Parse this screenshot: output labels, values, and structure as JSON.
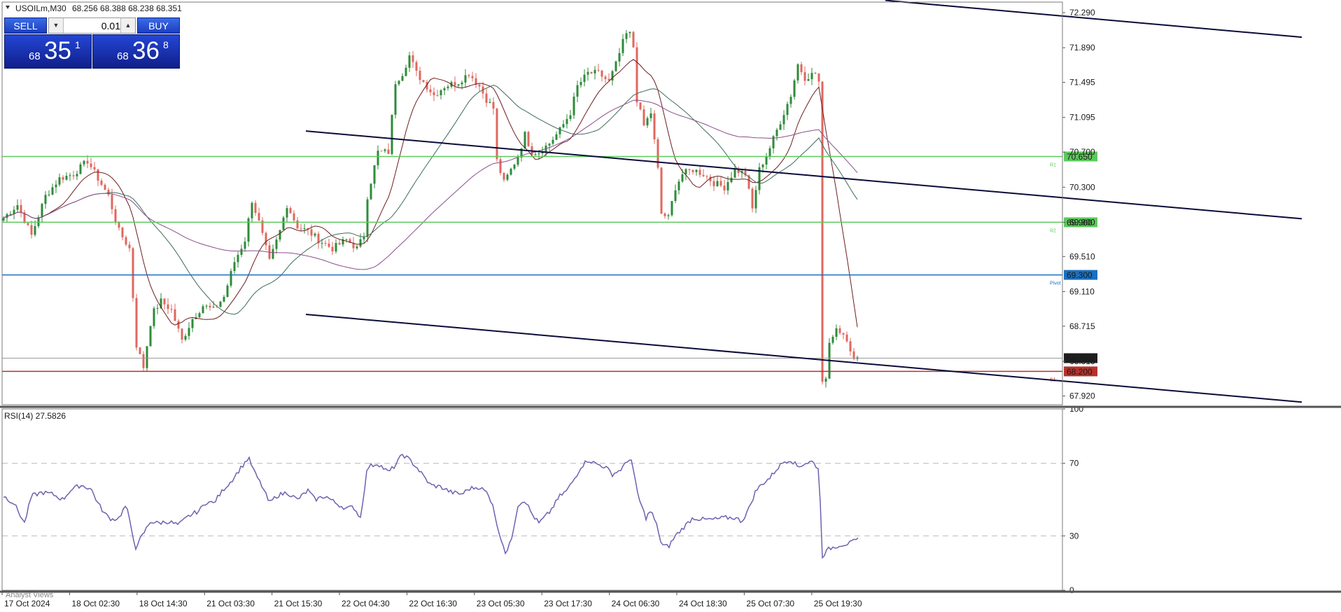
{
  "header": {
    "symbol_timeframe": "USOILm,M30",
    "ohlc": "68.256 68.388 68.238 68.351"
  },
  "trade_panel": {
    "sell_label": "SELL",
    "buy_label": "BUY",
    "lot_value": "0.01",
    "sell_price": {
      "prefix": "68",
      "main": "35",
      "sup": "1"
    },
    "buy_price": {
      "prefix": "68",
      "main": "36",
      "sup": "8"
    }
  },
  "colors": {
    "bull_candle": "#2e8b3a",
    "bear_candle": "#e0675e",
    "support_resistance_green": "#5cc95c",
    "pivot_blue": "#1a6fbf",
    "s1_red": "#b5322c",
    "channel_line": "#0b0b3a",
    "rsi_line": "#7060b0",
    "ma_fast": "#6b1d1d",
    "ma_mid": "#3f6b5a",
    "ma_slow": "#8a4f8a"
  },
  "chart_data": [
    {
      "type": "candlestick",
      "symbol": "USOILm",
      "timeframe": "M30",
      "price_ticks": [
        "72.290",
        "71.890",
        "71.495",
        "71.095",
        "70.700",
        "70.300",
        "69.900",
        "69.510",
        "69.110",
        "68.715",
        "68.315",
        "67.920"
      ],
      "ylim": [
        67.82,
        72.41
      ],
      "x_ticks": [
        "17 Oct 2024",
        "18 Oct 02:30",
        "18 Oct 14:30",
        "21 Oct 03:30",
        "21 Oct 15:30",
        "22 Oct 04:30",
        "22 Oct 16:30",
        "23 Oct 05:30",
        "23 Oct 17:30",
        "24 Oct 06:30",
        "24 Oct 18:30",
        "25 Oct 07:30",
        "25 Oct 19:30"
      ],
      "current_price": "68.351",
      "levels": [
        {
          "name": "R1",
          "value": 70.65,
          "label": "70.650",
          "tag": "R1"
        },
        {
          "name": "R2",
          "value": 69.9,
          "label": "69.900",
          "tag": "R2"
        },
        {
          "name": "Pivot",
          "value": 69.3,
          "label": "69.300",
          "tag": "Pivot"
        },
        {
          "name": "S1",
          "value": 68.2,
          "label": "68.200",
          "tag": "S1"
        }
      ],
      "channel_lines": [
        {
          "from": [
            437,
            70.94
          ],
          "to": [
            1860,
            69.94
          ]
        },
        {
          "from": [
            437,
            68.85
          ],
          "to": [
            1860,
            67.85
          ]
        },
        {
          "from": [
            1265,
            72.43
          ],
          "to": [
            1860,
            72.01
          ]
        }
      ],
      "anchors": [
        [
          0,
          69.95
        ],
        [
          20,
          70.1
        ],
        [
          40,
          69.75
        ],
        [
          60,
          70.2
        ],
        [
          80,
          70.4
        ],
        [
          100,
          70.45
        ],
        [
          120,
          70.6
        ],
        [
          135,
          70.4
        ],
        [
          150,
          70.2
        ],
        [
          165,
          69.8
        ],
        [
          180,
          69.6
        ],
        [
          190,
          68.5
        ],
        [
          200,
          68.25
        ],
        [
          212,
          68.85
        ],
        [
          225,
          69.0
        ],
        [
          240,
          68.9
        ],
        [
          255,
          68.55
        ],
        [
          270,
          68.8
        ],
        [
          285,
          68.95
        ],
        [
          300,
          68.9
        ],
        [
          315,
          69.05
        ],
        [
          330,
          69.45
        ],
        [
          345,
          69.7
        ],
        [
          355,
          70.15
        ],
        [
          365,
          69.9
        ],
        [
          380,
          69.45
        ],
        [
          395,
          69.8
        ],
        [
          405,
          70.1
        ],
        [
          420,
          69.85
        ],
        [
          435,
          69.8
        ],
        [
          450,
          69.7
        ],
        [
          470,
          69.6
        ],
        [
          490,
          69.7
        ],
        [
          505,
          69.6
        ],
        [
          515,
          69.75
        ],
        [
          520,
          70.2
        ],
        [
          535,
          70.7
        ],
        [
          550,
          70.7
        ],
        [
          560,
          71.5
        ],
        [
          570,
          71.6
        ],
        [
          580,
          71.8
        ],
        [
          590,
          71.6
        ],
        [
          600,
          71.5
        ],
        [
          615,
          71.35
        ],
        [
          630,
          71.45
        ],
        [
          650,
          71.5
        ],
        [
          665,
          71.6
        ],
        [
          680,
          71.45
        ],
        [
          690,
          71.3
        ],
        [
          700,
          71.2
        ],
        [
          705,
          70.6
        ],
        [
          715,
          70.35
        ],
        [
          725,
          70.5
        ],
        [
          735,
          70.65
        ],
        [
          745,
          70.9
        ],
        [
          755,
          70.7
        ],
        [
          765,
          70.7
        ],
        [
          780,
          70.8
        ],
        [
          795,
          70.95
        ],
        [
          810,
          71.15
        ],
        [
          820,
          71.45
        ],
        [
          835,
          71.6
        ],
        [
          850,
          71.6
        ],
        [
          865,
          71.5
        ],
        [
          875,
          71.7
        ],
        [
          885,
          71.95
        ],
        [
          893,
          72.1
        ],
        [
          900,
          71.9
        ],
        [
          905,
          71.3
        ],
        [
          915,
          71.0
        ],
        [
          925,
          71.15
        ],
        [
          935,
          70.5
        ],
        [
          940,
          70.0
        ],
        [
          950,
          69.95
        ],
        [
          960,
          70.3
        ],
        [
          970,
          70.45
        ],
        [
          985,
          70.5
        ],
        [
          1000,
          70.45
        ],
        [
          1015,
          70.35
        ],
        [
          1030,
          70.3
        ],
        [
          1045,
          70.5
        ],
        [
          1060,
          70.45
        ],
        [
          1070,
          70.05
        ],
        [
          1080,
          70.5
        ],
        [
          1095,
          70.75
        ],
        [
          1105,
          70.95
        ],
        [
          1115,
          71.15
        ],
        [
          1125,
          71.35
        ],
        [
          1135,
          71.7
        ],
        [
          1145,
          71.55
        ],
        [
          1160,
          71.6
        ],
        [
          1165,
          71.5
        ],
        [
          1168,
          68.3
        ],
        [
          1172,
          67.8
        ],
        [
          1178,
          68.5
        ],
        [
          1190,
          68.7
        ],
        [
          1200,
          68.65
        ],
        [
          1210,
          68.4
        ],
        [
          1222,
          68.35
        ]
      ]
    },
    {
      "type": "line",
      "indicator_label": "RSI(14) 27.5826",
      "ylim": [
        0,
        100
      ],
      "y_ticks": [
        "100",
        "70",
        "30",
        "0"
      ],
      "levels": [
        70,
        30
      ],
      "anchors": [
        [
          0,
          52
        ],
        [
          15,
          48
        ],
        [
          30,
          37
        ],
        [
          40,
          52
        ],
        [
          55,
          54
        ],
        [
          70,
          53
        ],
        [
          85,
          50
        ],
        [
          95,
          55
        ],
        [
          110,
          58
        ],
        [
          125,
          56
        ],
        [
          135,
          48
        ],
        [
          145,
          42
        ],
        [
          155,
          39
        ],
        [
          165,
          40
        ],
        [
          175,
          47
        ],
        [
          185,
          30
        ],
        [
          190,
          22
        ],
        [
          195,
          28
        ],
        [
          210,
          38
        ],
        [
          220,
          37
        ],
        [
          235,
          38
        ],
        [
          250,
          36
        ],
        [
          265,
          41
        ],
        [
          280,
          44
        ],
        [
          290,
          49
        ],
        [
          300,
          48
        ],
        [
          315,
          56
        ],
        [
          325,
          60
        ],
        [
          340,
          68
        ],
        [
          350,
          73
        ],
        [
          360,
          64
        ],
        [
          370,
          57
        ],
        [
          380,
          48
        ],
        [
          390,
          52
        ],
        [
          405,
          54
        ],
        [
          420,
          50
        ],
        [
          435,
          55
        ],
        [
          445,
          50
        ],
        [
          460,
          52
        ],
        [
          475,
          48
        ],
        [
          490,
          45
        ],
        [
          500,
          46
        ],
        [
          510,
          40
        ],
        [
          520,
          68
        ],
        [
          535,
          70
        ],
        [
          550,
          65
        ],
        [
          560,
          69
        ],
        [
          570,
          75
        ],
        [
          580,
          72
        ],
        [
          590,
          68
        ],
        [
          600,
          63
        ],
        [
          610,
          58
        ],
        [
          625,
          57
        ],
        [
          640,
          54
        ],
        [
          655,
          53
        ],
        [
          665,
          56
        ],
        [
          680,
          57
        ],
        [
          690,
          54
        ],
        [
          700,
          47
        ],
        [
          705,
          35
        ],
        [
          710,
          30
        ],
        [
          718,
          20
        ],
        [
          725,
          27
        ],
        [
          735,
          47
        ],
        [
          745,
          50
        ],
        [
          755,
          42
        ],
        [
          765,
          37
        ],
        [
          780,
          43
        ],
        [
          795,
          52
        ],
        [
          805,
          55
        ],
        [
          815,
          61
        ],
        [
          825,
          68
        ],
        [
          835,
          72
        ],
        [
          845,
          70
        ],
        [
          860,
          68
        ],
        [
          870,
          64
        ],
        [
          880,
          66
        ],
        [
          890,
          70
        ],
        [
          896,
          74
        ],
        [
          905,
          55
        ],
        [
          910,
          48
        ],
        [
          918,
          40
        ],
        [
          925,
          44
        ],
        [
          935,
          34
        ],
        [
          940,
          25
        ],
        [
          950,
          24
        ],
        [
          960,
          30
        ],
        [
          970,
          34
        ],
        [
          985,
          40
        ],
        [
          1000,
          39
        ],
        [
          1015,
          39
        ],
        [
          1030,
          40
        ],
        [
          1045,
          40
        ],
        [
          1055,
          38
        ],
        [
          1065,
          45
        ],
        [
          1075,
          55
        ],
        [
          1085,
          59
        ],
        [
          1095,
          62
        ],
        [
          1105,
          67
        ],
        [
          1115,
          71
        ],
        [
          1125,
          72
        ],
        [
          1135,
          68
        ],
        [
          1145,
          70
        ],
        [
          1155,
          71
        ],
        [
          1165,
          67
        ],
        [
          1170,
          19
        ],
        [
          1180,
          23
        ],
        [
          1195,
          25
        ],
        [
          1210,
          26
        ],
        [
          1222,
          28
        ]
      ]
    }
  ],
  "bottom_tab": "Analyst Views"
}
